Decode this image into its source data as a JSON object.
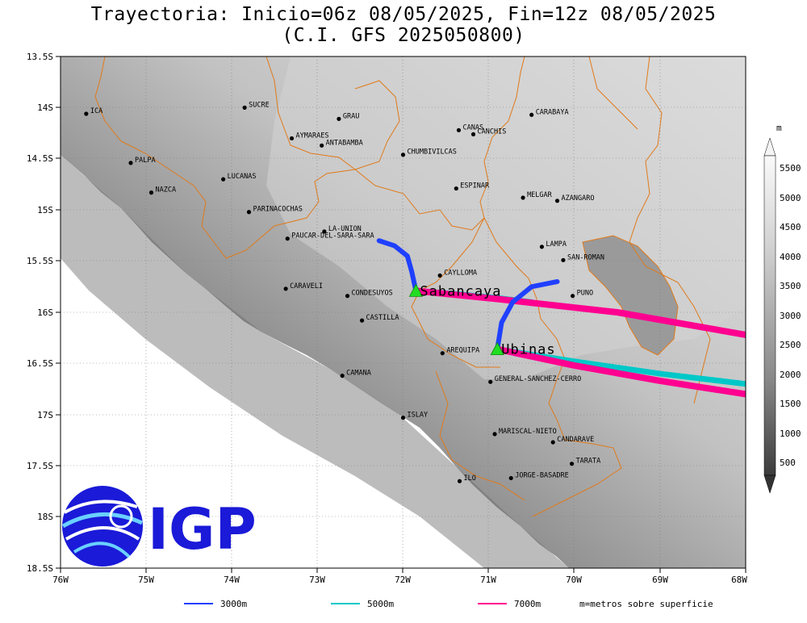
{
  "title": {
    "line1": "Trayectoria: Inicio=06z 08/05/2025, Fin=12z 08/05/2025",
    "line2": "(C.I. GFS 2025050800)"
  },
  "axes": {
    "lat_labels": [
      "13.5S",
      "14S",
      "14.5S",
      "15S",
      "15.5S",
      "16S",
      "16.5S",
      "17S",
      "17.5S",
      "18S",
      "18.5S"
    ],
    "lon_labels": [
      "76W",
      "75W",
      "74W",
      "73W",
      "72W",
      "71W",
      "70W",
      "69W",
      "68W"
    ]
  },
  "colorbar": {
    "unit": "m",
    "labels": [
      "500",
      "1000",
      "1500",
      "2000",
      "2500",
      "3000",
      "3500",
      "4000",
      "4500",
      "5000",
      "5500"
    ]
  },
  "places": [
    {
      "name": "ICA",
      "lon": -75.7,
      "lat": -14.06
    },
    {
      "name": "SUCRE",
      "lon": -73.85,
      "lat": -14.0
    },
    {
      "name": "GRAU",
      "lon": -72.75,
      "lat": -14.11
    },
    {
      "name": "CARABAYA",
      "lon": -70.5,
      "lat": -14.07
    },
    {
      "name": "CANAS",
      "lon": -71.35,
      "lat": -14.22
    },
    {
      "name": "CANCHIS",
      "lon": -71.18,
      "lat": -14.26
    },
    {
      "name": "AYMARAES",
      "lon": -73.3,
      "lat": -14.3
    },
    {
      "name": "ANTABAMBA",
      "lon": -72.95,
      "lat": -14.37
    },
    {
      "name": "CHUMBIVILCAS",
      "lon": -72.0,
      "lat": -14.46
    },
    {
      "name": "PALPA",
      "lon": -75.18,
      "lat": -14.54
    },
    {
      "name": "LUCANAS",
      "lon": -74.1,
      "lat": -14.7
    },
    {
      "name": "ESPINAR",
      "lon": -71.38,
      "lat": -14.79
    },
    {
      "name": "NAZCA",
      "lon": -74.94,
      "lat": -14.83
    },
    {
      "name": "MELGAR",
      "lon": -70.6,
      "lat": -14.88
    },
    {
      "name": "AZANGARO",
      "lon": -70.2,
      "lat": -14.91
    },
    {
      "name": "PARINACOCHAS",
      "lon": -73.8,
      "lat": -15.02
    },
    {
      "name": "LA-UNION",
      "lon": -72.92,
      "lat": -15.21
    },
    {
      "name": "PAUCAR-DEL-SARA-SARA",
      "lon": -73.35,
      "lat": -15.28
    },
    {
      "name": "LAMPA",
      "lon": -70.38,
      "lat": -15.36
    },
    {
      "name": "CAYLLOMA",
      "lon": -71.57,
      "lat": -15.64
    },
    {
      "name": "SAN-ROMAN",
      "lon": -70.13,
      "lat": -15.49
    },
    {
      "name": "CARAVELI",
      "lon": -73.37,
      "lat": -15.77
    },
    {
      "name": "CONDESUYOS",
      "lon": -72.65,
      "lat": -15.84
    },
    {
      "name": "PUNO",
      "lon": -70.02,
      "lat": -15.84
    },
    {
      "name": "CASTILLA",
      "lon": -72.48,
      "lat": -16.08
    },
    {
      "name": "AREQUIPA",
      "lon": -71.54,
      "lat": -16.4
    },
    {
      "name": "CAMANA",
      "lon": -72.71,
      "lat": -16.62
    },
    {
      "name": "GENERAL-SANCHEZ-CERRO",
      "lon": -70.98,
      "lat": -16.68
    },
    {
      "name": "ISLAY",
      "lon": -72.0,
      "lat": -17.03
    },
    {
      "name": "MARISCAL-NIETO",
      "lon": -70.93,
      "lat": -17.19
    },
    {
      "name": "CANDARAVE",
      "lon": -70.25,
      "lat": -17.27
    },
    {
      "name": "TARATA",
      "lon": -70.03,
      "lat": -17.48
    },
    {
      "name": "ILO",
      "lon": -71.34,
      "lat": -17.65
    },
    {
      "name": "JORGE-BASADRE",
      "lon": -70.74,
      "lat": -17.62
    }
  ],
  "volcanoes": [
    {
      "name": "Sabancaya",
      "lon": -71.85,
      "lat": -15.79
    },
    {
      "name": "Ubinas",
      "lon": -70.9,
      "lat": -16.36
    }
  ],
  "trajectories": [
    {
      "volcano": "Sabancaya",
      "level": "3000m",
      "color": "#2040ff",
      "path": [
        [
          -71.85,
          -15.79
        ],
        [
          -71.9,
          -15.6
        ],
        [
          -71.95,
          -15.45
        ],
        [
          -72.1,
          -15.35
        ],
        [
          -72.28,
          -15.3
        ]
      ]
    },
    {
      "volcano": "Sabancaya",
      "level": "5000m",
      "color": "#00c8c8",
      "path": [
        [
          -71.85,
          -15.79
        ],
        [
          -71.4,
          -15.82
        ],
        [
          -70.9,
          -15.86
        ],
        [
          -70.5,
          -15.9
        ]
      ]
    },
    {
      "volcano": "Sabancaya",
      "level": "7000m",
      "color": "#ff0090",
      "path": [
        [
          -71.85,
          -15.79
        ],
        [
          -70.9,
          -15.87
        ],
        [
          -69.5,
          -16.0
        ],
        [
          -68.0,
          -16.22
        ]
      ]
    },
    {
      "volcano": "Ubinas",
      "level": "3000m",
      "color": "#2040ff",
      "path": [
        [
          -70.9,
          -16.36
        ],
        [
          -70.85,
          -16.1
        ],
        [
          -70.72,
          -15.9
        ],
        [
          -70.5,
          -15.75
        ],
        [
          -70.2,
          -15.7
        ]
      ]
    },
    {
      "volcano": "Ubinas",
      "level": "5000m",
      "color": "#00c8c8",
      "path": [
        [
          -70.9,
          -16.36
        ],
        [
          -70.0,
          -16.48
        ],
        [
          -69.0,
          -16.6
        ],
        [
          -68.0,
          -16.7
        ]
      ]
    },
    {
      "volcano": "Ubinas",
      "level": "7000m",
      "color": "#ff0090",
      "path": [
        [
          -70.9,
          -16.36
        ],
        [
          -70.0,
          -16.52
        ],
        [
          -69.0,
          -16.67
        ],
        [
          -68.0,
          -16.8
        ]
      ]
    }
  ],
  "legend": [
    {
      "label": "3000m",
      "color": "#2040ff"
    },
    {
      "label": "5000m",
      "color": "#00c8c8"
    },
    {
      "label": "7000m",
      "color": "#ff0090"
    }
  ],
  "legend_note": "m=metros sobre superficie",
  "logo": {
    "text": "IGP",
    "color": "#1a1ad8"
  }
}
